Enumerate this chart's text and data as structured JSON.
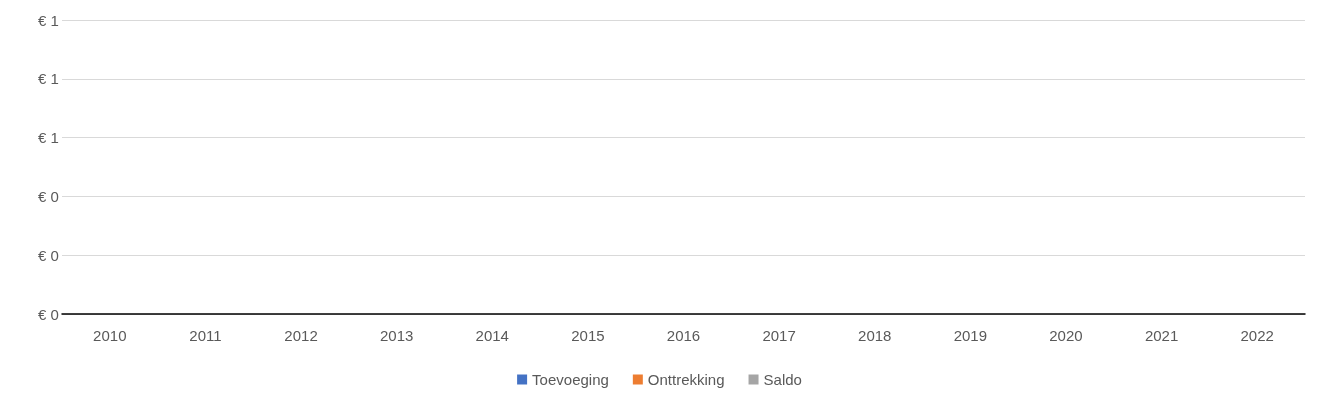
{
  "chart_data": {
    "type": "bar",
    "categories": [
      "2010",
      "2011",
      "2012",
      "2013",
      "2014",
      "2015",
      "2016",
      "2017",
      "2018",
      "2019",
      "2020",
      "2021",
      "2022"
    ],
    "series": [
      {
        "name": "Toevoeging",
        "color": "#4472c4",
        "values": [
          0,
          0,
          0,
          0,
          0,
          0,
          0,
          0,
          0,
          0,
          0,
          0,
          0
        ]
      },
      {
        "name": "Onttrekking",
        "color": "#ed7d31",
        "values": [
          0,
          0,
          0,
          0,
          0,
          0,
          0,
          0,
          0,
          0,
          0,
          0,
          0
        ]
      },
      {
        "name": "Saldo",
        "color": "#a5a5a5",
        "values": [
          0,
          0,
          0,
          0,
          0,
          0,
          0,
          0,
          0,
          0,
          0,
          0,
          0
        ]
      }
    ],
    "ylim": [
      0,
      1
    ],
    "yticks": [
      {
        "value": 0,
        "label": "€ 0"
      },
      {
        "value": 0.2,
        "label": "€ 0"
      },
      {
        "value": 0.4,
        "label": "€ 0"
      },
      {
        "value": 0.6,
        "label": "€ 1"
      },
      {
        "value": 0.8,
        "label": "€ 1"
      },
      {
        "value": 1,
        "label": "€ 1"
      }
    ],
    "grid": "y",
    "legend": "bottom"
  }
}
